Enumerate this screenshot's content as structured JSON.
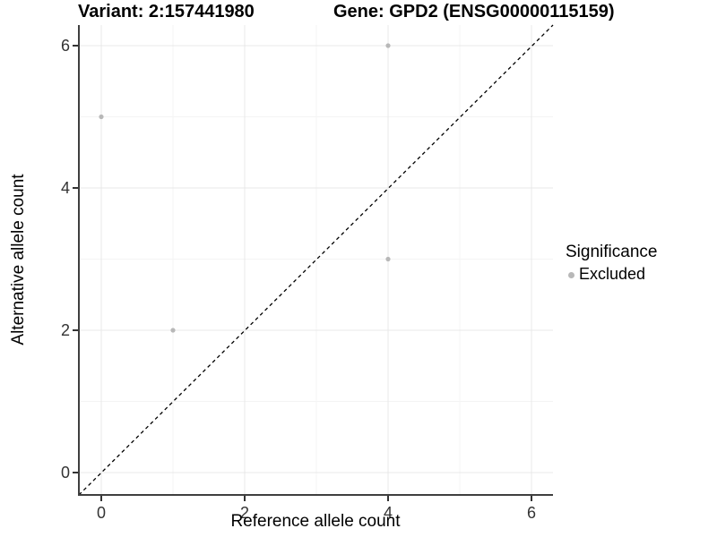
{
  "chart_data": {
    "type": "scatter",
    "title_variant": "Variant: 2:157441980",
    "title_gene": "Gene: GPD2 (ENSG00000115159)",
    "xlabel": "Reference allele count",
    "ylabel": "Alternative allele count",
    "xlim": [
      -0.31,
      6.31
    ],
    "ylim": [
      -0.31,
      6.31
    ],
    "x_ticks": [
      0,
      2,
      4,
      6
    ],
    "y_ticks": [
      0,
      2,
      4,
      6
    ],
    "minor_gridlines": [
      1,
      3,
      5
    ],
    "grid": true,
    "legend_position": "right",
    "identity_line": {
      "equation": "y = x",
      "style": "dashed",
      "color": "#000000"
    },
    "series": [
      {
        "name": "Excluded",
        "color": "#b8b8b8",
        "points": [
          [
            0,
            5
          ],
          [
            1,
            2
          ],
          [
            4,
            6
          ],
          [
            4,
            3
          ]
        ]
      }
    ],
    "legend": {
      "title": "Significance",
      "items": [
        {
          "label": "Excluded",
          "color": "#b8b8b8"
        }
      ]
    }
  },
  "colors": {
    "background": "#ffffff",
    "grid_major": "#e9e9e9",
    "grid_minor": "#f4f4f4",
    "axis_line": "#3f3f3f",
    "tick_mark": "#333333",
    "tick_label": "#333333",
    "point": "#b8b8b8",
    "identity_line": "#000000"
  }
}
